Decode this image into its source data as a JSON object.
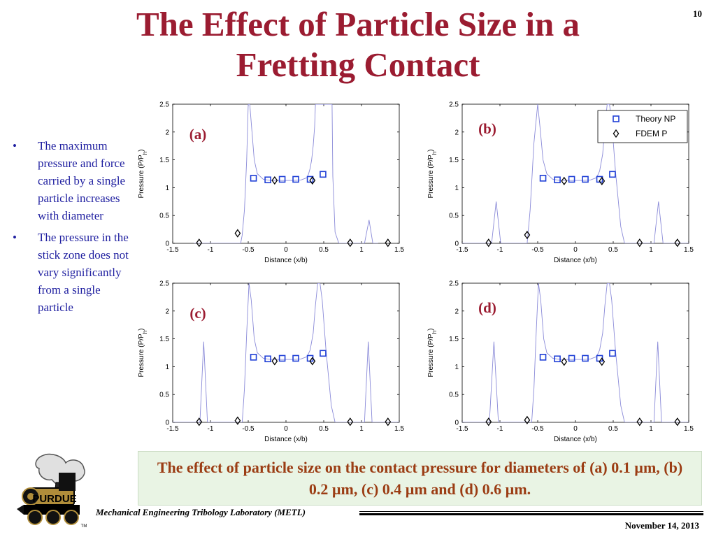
{
  "slide": {
    "title_line1": "The Effect of Particle Size in a",
    "title_line2": "Fretting Contact",
    "page_number": "10"
  },
  "bullets": [
    "The maximum pressure and force carried by a single particle increases with diameter",
    "The pressure in the stick zone does not vary significantly from a single particle"
  ],
  "caption": "The effect of particle size on the contact pressure for diameters of (a) 0.1 µm, (b) 0.2 µm, (c) 0.4 µm and (d) 0.6 µm.",
  "footer": {
    "lab": "Mechanical Engineering Tribology Laboratory (METL)",
    "date": "November 14, 2013",
    "tm": "TM"
  },
  "logo_text": "PURDUE",
  "colors": {
    "title": "#9b1c31",
    "bullet_text": "#1f1fa0",
    "caption_text": "#9b3d14",
    "caption_bg": "#e9f4e4",
    "theory_marker": "#1f3fd6",
    "fdem_marker": "#000000",
    "curve": "#8a8ad8"
  },
  "chart_data": [
    {
      "type": "scatter",
      "panel_label": "(a)",
      "xlabel": "Distance (x/b)",
      "ylabel_main": "Pressure (P/P",
      "ylabel_sub": "h",
      "ylabel_close": ")",
      "xlim": [
        -1.5,
        1.5
      ],
      "ylim": [
        0,
        2.5
      ],
      "xticks": [
        -1.5,
        -1,
        -0.5,
        0,
        0.5,
        1,
        1.5
      ],
      "yticks": [
        0,
        0.5,
        1,
        1.5,
        2,
        2.5
      ],
      "xtick_labels": [
        "-1.5",
        "-1",
        "-0.5",
        "0",
        "0.5",
        "1",
        "1.5"
      ],
      "ytick_labels": [
        "0",
        "0.5",
        "1",
        "1.5",
        "2",
        "2.5"
      ],
      "legend": null,
      "series": [
        {
          "name": "Theory NP",
          "marker": "square",
          "x": [
            -0.43,
            -0.24,
            -0.05,
            0.13,
            0.32,
            0.49
          ],
          "y": [
            1.17,
            1.14,
            1.15,
            1.15,
            1.15,
            1.24
          ]
        },
        {
          "name": "FDEM P",
          "marker": "diamond",
          "x": [
            -1.15,
            -0.64,
            -0.15,
            0.35,
            0.85,
            1.35
          ],
          "y": [
            0.01,
            0.18,
            1.13,
            1.13,
            0.01,
            0.01
          ]
        }
      ],
      "curve": {
        "name": "continuous FDEM pressure",
        "x": [
          -1.22,
          -1.11,
          -1.02,
          -0.93,
          -0.84,
          -0.6,
          -0.58,
          -0.55,
          -0.52,
          -0.5,
          -0.48,
          -0.45,
          -0.42,
          -0.38,
          -0.3,
          -0.2,
          -0.1,
          0,
          0.1,
          0.2,
          0.28,
          0.3,
          0.32,
          0.34,
          0.36,
          0.38,
          0.39,
          0.41,
          0.44,
          0.48,
          0.52,
          0.56,
          0.59,
          0.61,
          0.62,
          0.65,
          0.7,
          0.95,
          1.04,
          1.1,
          1.15,
          1.22
        ],
        "y": [
          0.0,
          0.0,
          0.0,
          0.0,
          0.0,
          0.0,
          0.15,
          0.6,
          1.5,
          2.5,
          2.5,
          2.0,
          1.5,
          1.25,
          1.15,
          1.13,
          1.13,
          1.13,
          1.13,
          1.14,
          1.18,
          1.25,
          1.35,
          1.5,
          1.75,
          2.1,
          2.5,
          2.5,
          2.5,
          2.5,
          2.5,
          2.5,
          2.5,
          2.5,
          1.2,
          0.2,
          0.0,
          0.0,
          0.0,
          0.42,
          0.0,
          0.0
        ]
      }
    },
    {
      "type": "scatter",
      "panel_label": "(b)",
      "xlabel": "Distance (x/b)",
      "ylabel_main": "Pressure (P/P",
      "ylabel_sub": "h",
      "ylabel_close": ")",
      "xlim": [
        -1.5,
        1.5
      ],
      "ylim": [
        0,
        2.5
      ],
      "xticks": [
        -1.5,
        -1,
        -0.5,
        0,
        0.5,
        1,
        1.5
      ],
      "yticks": [
        0,
        0.5,
        1,
        1.5,
        2,
        2.5
      ],
      "xtick_labels": [
        "-1.5",
        "-1",
        "-0.5",
        "0",
        "0.5",
        "1",
        "1.5"
      ],
      "ytick_labels": [
        "0",
        "0.5",
        "1",
        "1.5",
        "2",
        "2.5"
      ],
      "legend": {
        "position": "top-right",
        "entries": [
          "Theory NP",
          "FDEM P"
        ]
      },
      "series": [
        {
          "name": "Theory NP",
          "marker": "square",
          "x": [
            -0.43,
            -0.24,
            -0.05,
            0.13,
            0.32,
            0.49
          ],
          "y": [
            1.17,
            1.14,
            1.15,
            1.15,
            1.15,
            1.24
          ]
        },
        {
          "name": "FDEM P",
          "marker": "diamond",
          "x": [
            -1.15,
            -0.64,
            -0.15,
            0.35,
            0.85,
            1.35
          ],
          "y": [
            0.01,
            0.15,
            1.12,
            1.12,
            0.01,
            0.01
          ]
        }
      ],
      "curve": {
        "name": "continuous FDEM pressure",
        "x": [
          -1.5,
          -1.11,
          -1.05,
          -0.99,
          -0.93,
          -0.7,
          -0.64,
          -0.6,
          -0.55,
          -0.5,
          -0.47,
          -0.43,
          -0.38,
          -0.3,
          -0.2,
          -0.1,
          0,
          0.1,
          0.2,
          0.28,
          0.32,
          0.36,
          0.39,
          0.42,
          0.45,
          0.48,
          0.53,
          0.6,
          0.65,
          0.9,
          1.04,
          1.1,
          1.16,
          1.5
        ],
        "y": [
          0.0,
          0.0,
          0.75,
          0.0,
          0.0,
          0.0,
          0.0,
          0.6,
          1.8,
          2.5,
          2.1,
          1.5,
          1.25,
          1.15,
          1.13,
          1.13,
          1.13,
          1.13,
          1.14,
          1.18,
          1.3,
          1.6,
          2.1,
          2.5,
          2.5,
          2.2,
          1.3,
          0.3,
          0.0,
          0.0,
          0.0,
          0.75,
          0.0,
          0.0
        ]
      }
    },
    {
      "type": "scatter",
      "panel_label": "(c)",
      "xlabel": "Distance (x/b)",
      "ylabel_main": "Pressure (P/P",
      "ylabel_sub": "h",
      "ylabel_close": ")",
      "xlim": [
        -1.5,
        1.5
      ],
      "ylim": [
        0,
        2.5
      ],
      "xticks": [
        -1.5,
        -1,
        -0.5,
        0,
        0.5,
        1,
        1.5
      ],
      "yticks": [
        0,
        0.5,
        1,
        1.5,
        2,
        2.5
      ],
      "xtick_labels": [
        "-1.5",
        "-1",
        "-0.5",
        "0",
        "0.5",
        "1",
        "1.5"
      ],
      "ytick_labels": [
        "0",
        "0.5",
        "1",
        "1.5",
        "2",
        "2.5"
      ],
      "legend": null,
      "series": [
        {
          "name": "Theory NP",
          "marker": "square",
          "x": [
            -0.43,
            -0.24,
            -0.05,
            0.13,
            0.32,
            0.49
          ],
          "y": [
            1.17,
            1.14,
            1.15,
            1.15,
            1.15,
            1.24
          ]
        },
        {
          "name": "FDEM P",
          "marker": "diamond",
          "x": [
            -1.15,
            -0.64,
            -0.15,
            0.35,
            0.85,
            1.35
          ],
          "y": [
            0.01,
            0.03,
            1.1,
            1.1,
            0.01,
            0.01
          ]
        }
      ],
      "curve": {
        "name": "continuous FDEM pressure",
        "x": [
          -1.5,
          -1.14,
          -1.09,
          -1.04,
          -0.7,
          -0.62,
          -0.58,
          -0.55,
          -0.52,
          -0.49,
          -0.46,
          -0.42,
          -0.38,
          -0.3,
          -0.2,
          -0.1,
          0,
          0.1,
          0.2,
          0.28,
          0.32,
          0.36,
          0.39,
          0.42,
          0.45,
          0.48,
          0.53,
          0.6,
          0.65,
          0.95,
          1.04,
          1.09,
          1.14,
          1.5
        ],
        "y": [
          0.0,
          0.0,
          1.45,
          0.0,
          0.0,
          0.0,
          0.0,
          0.6,
          1.6,
          2.5,
          2.2,
          1.5,
          1.25,
          1.15,
          1.13,
          1.13,
          1.13,
          1.13,
          1.14,
          1.18,
          1.3,
          1.6,
          2.1,
          2.5,
          2.5,
          2.2,
          1.3,
          0.3,
          0.0,
          0.0,
          0.0,
          1.45,
          0.0,
          0.0
        ]
      }
    },
    {
      "type": "scatter",
      "panel_label": "(d)",
      "xlabel": "Distance (x/b)",
      "ylabel_main": "Pressure (P/P",
      "ylabel_sub": "h",
      "ylabel_close": ")",
      "xlim": [
        -1.5,
        1.5
      ],
      "ylim": [
        0,
        2.5
      ],
      "xticks": [
        -1.5,
        -1,
        -0.5,
        0,
        0.5,
        1,
        1.5
      ],
      "yticks": [
        0,
        0.5,
        1,
        1.5,
        2,
        2.5
      ],
      "xtick_labels": [
        "-1.5",
        "-1",
        "-0.5",
        "0",
        "0.5",
        "1",
        "1.5"
      ],
      "ytick_labels": [
        "0",
        "0.5",
        "1",
        "1.5",
        "2",
        "2.5"
      ],
      "legend": null,
      "series": [
        {
          "name": "Theory NP",
          "marker": "square",
          "x": [
            -0.43,
            -0.24,
            -0.05,
            0.13,
            0.32,
            0.49
          ],
          "y": [
            1.17,
            1.14,
            1.15,
            1.15,
            1.15,
            1.24
          ]
        },
        {
          "name": "FDEM P",
          "marker": "diamond",
          "x": [
            -1.15,
            -0.64,
            -0.15,
            0.35,
            0.85,
            1.35
          ],
          "y": [
            0.01,
            0.04,
            1.09,
            1.09,
            0.01,
            0.01
          ]
        }
      ],
      "curve": {
        "name": "continuous FDEM pressure",
        "x": [
          -1.5,
          -1.14,
          -1.08,
          -1.02,
          -0.7,
          -0.62,
          -0.58,
          -0.55,
          -0.52,
          -0.49,
          -0.46,
          -0.42,
          -0.38,
          -0.3,
          -0.2,
          -0.1,
          0,
          0.1,
          0.2,
          0.28,
          0.32,
          0.36,
          0.39,
          0.42,
          0.45,
          0.48,
          0.53,
          0.6,
          0.65,
          0.95,
          1.04,
          1.09,
          1.14,
          1.5
        ],
        "y": [
          0.0,
          0.0,
          1.45,
          0.0,
          0.0,
          0.0,
          0.0,
          0.6,
          1.6,
          2.5,
          2.2,
          1.5,
          1.25,
          1.15,
          1.13,
          1.13,
          1.13,
          1.13,
          1.14,
          1.18,
          1.3,
          1.6,
          2.1,
          2.5,
          2.5,
          2.2,
          1.3,
          0.3,
          0.0,
          0.0,
          0.0,
          1.45,
          0.0,
          0.0
        ]
      }
    }
  ]
}
